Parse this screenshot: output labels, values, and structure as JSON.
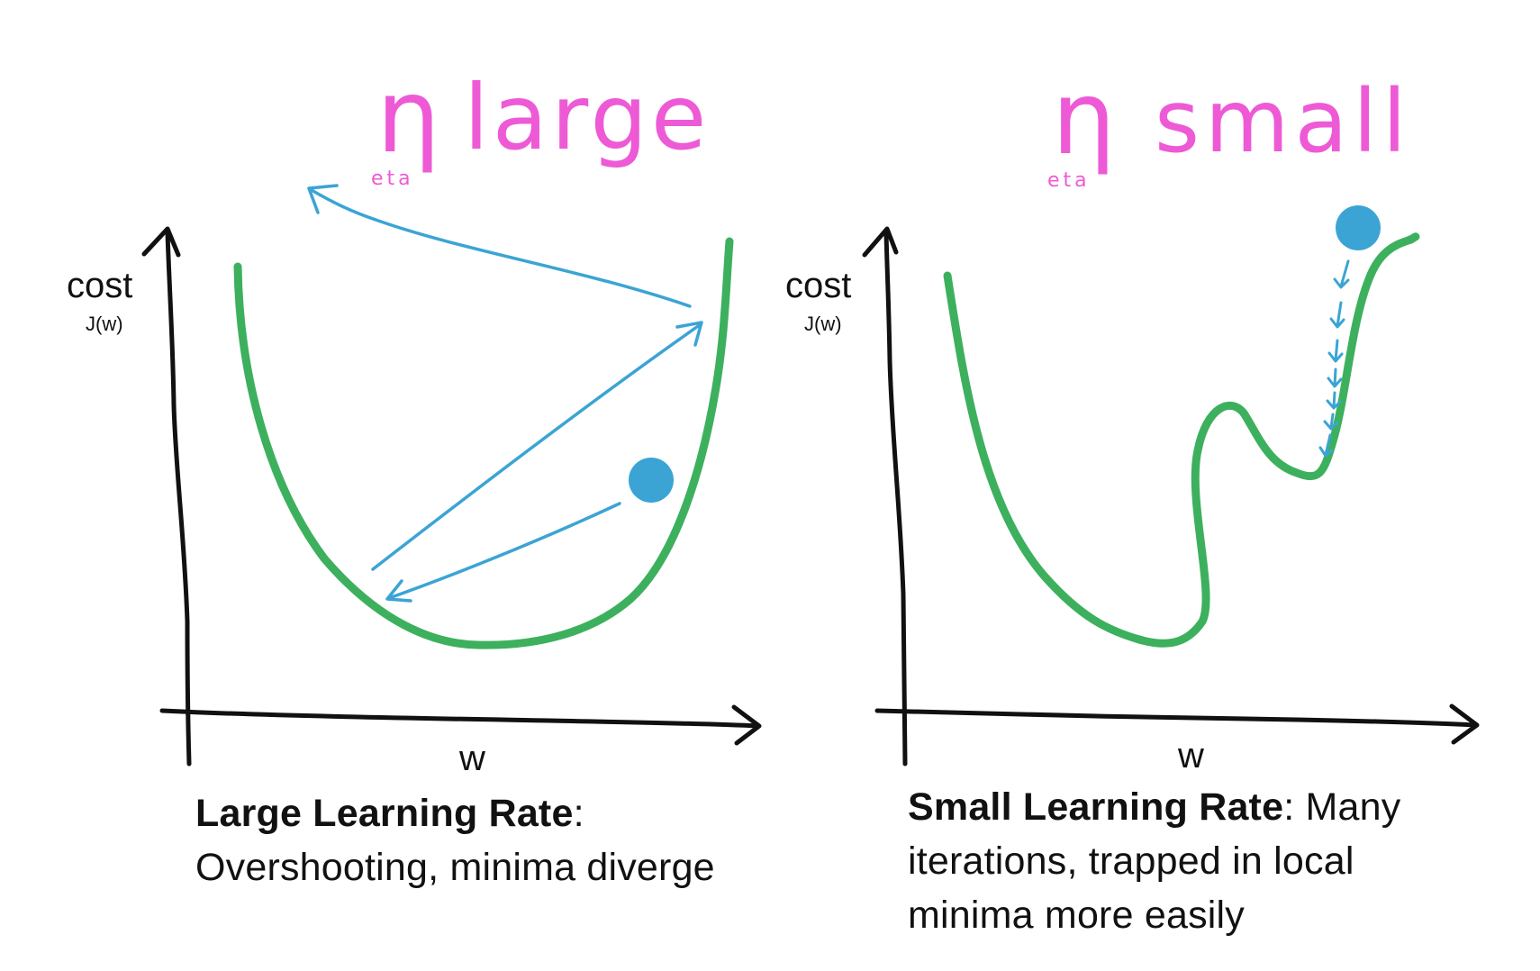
{
  "colors": {
    "curve": "#3db05e",
    "arrow": "#3ba4d4",
    "ball": "#3ba4d4",
    "title": "#ee5ad6",
    "axis": "#111111",
    "text": "#111111"
  },
  "left": {
    "title_symbol": "η",
    "title_word": "large",
    "eta_label": "eta",
    "ylabel": "cost",
    "ylabel_sub": "J(w)",
    "xlabel": "w",
    "caption_bold": "Large Learning Rate",
    "caption_colon": ":",
    "caption_line2": "Overshooting, minima diverge"
  },
  "right": {
    "title_symbol": "η",
    "title_word": "small",
    "eta_label": "eta",
    "ylabel": "cost",
    "ylabel_sub": "J(w)",
    "xlabel": "w",
    "caption_bold": "Small Learning Rate",
    "caption_rest": ": Many",
    "caption_line2": "iterations, trapped in local",
    "caption_line3": "minima more easily"
  }
}
